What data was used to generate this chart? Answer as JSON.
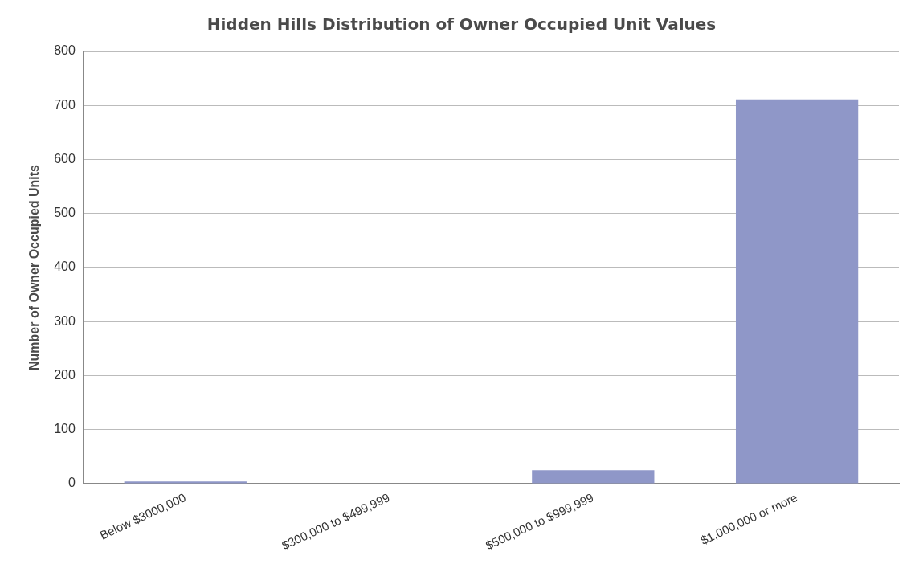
{
  "chart_data": {
    "type": "bar",
    "title": "Hidden Hills Distribution of Owner Occupied Unit Values",
    "ylabel": "Number of Owner Occupied Units",
    "categories": [
      "Below $3000,000",
      "$300,000 to $499,999",
      "$500,000 to $999,999",
      "$1,000,000 or more"
    ],
    "values": [
      4,
      0,
      25,
      711
    ],
    "color": "#8f97c8",
    "ylim": [
      0,
      800
    ],
    "yticks": [
      0,
      100,
      200,
      300,
      400,
      500,
      600,
      700,
      800
    ],
    "grid": "y"
  }
}
